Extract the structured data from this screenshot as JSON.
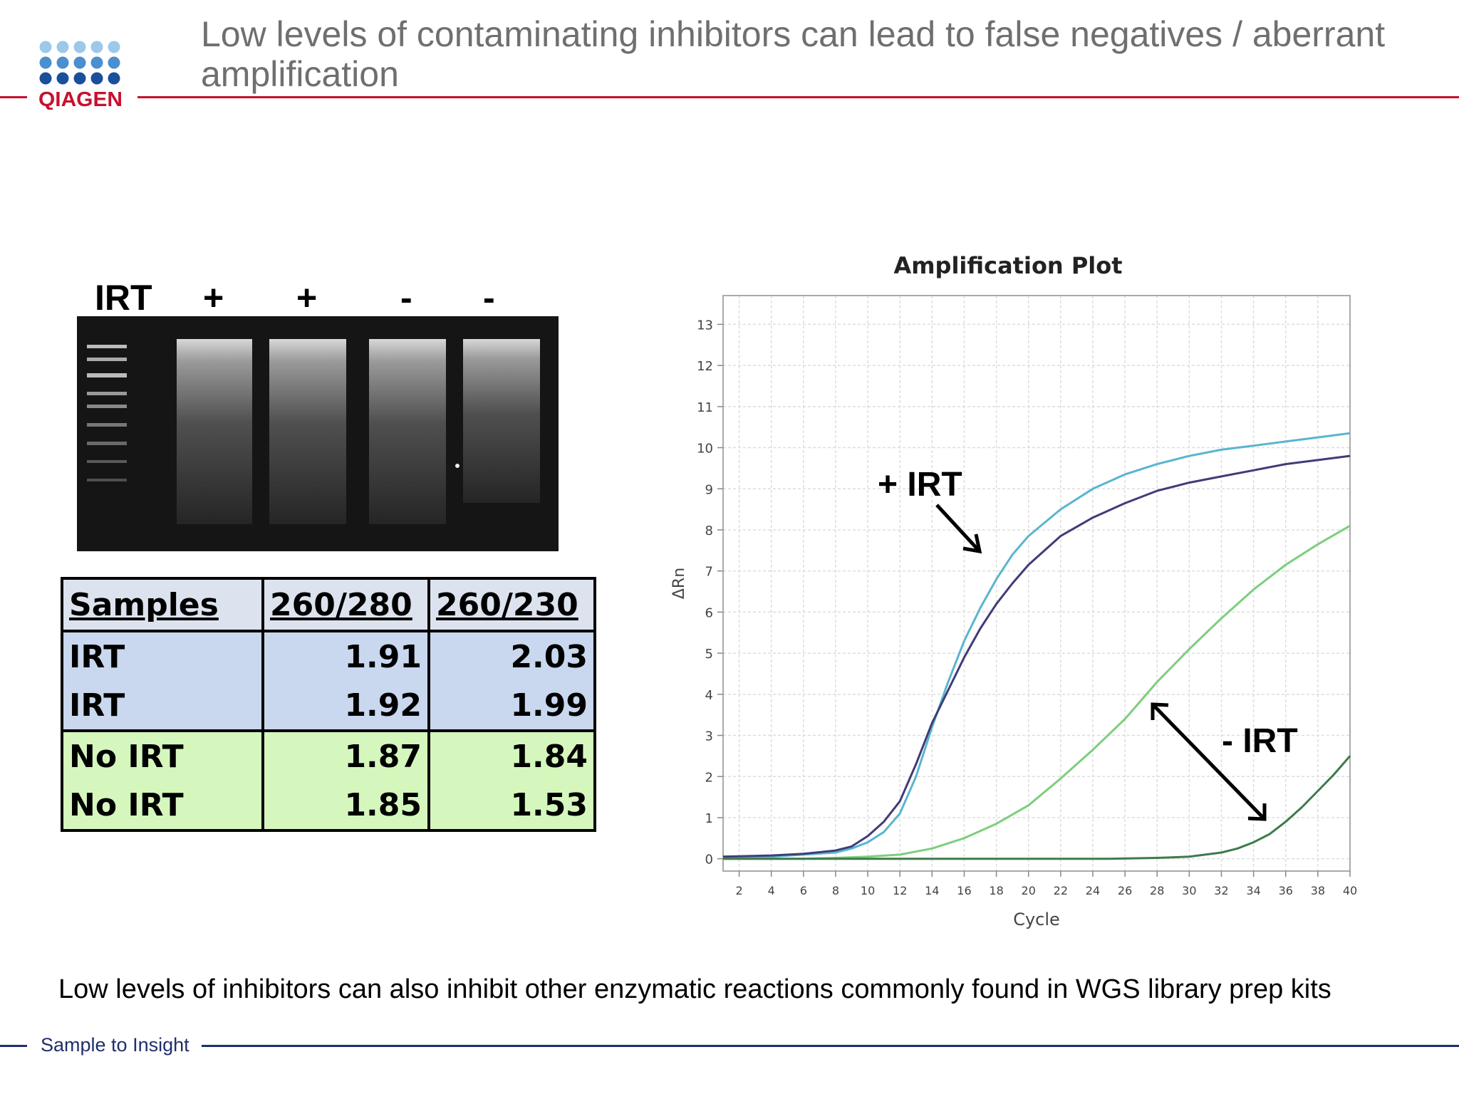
{
  "header": {
    "logo_text": "QIAGEN",
    "title": "Low levels of contaminating inhibitors can lead to false negatives / aberrant amplification"
  },
  "gel": {
    "lane_labels": [
      "IRT",
      "+",
      "+",
      "-",
      "-"
    ]
  },
  "table": {
    "headers": [
      "Samples",
      "260/280",
      "260/230"
    ],
    "rows": [
      {
        "sample": "IRT",
        "r280": "1.91",
        "r230": "2.03"
      },
      {
        "sample": "IRT",
        "r280": "1.92",
        "r230": "1.99"
      },
      {
        "sample": "No IRT",
        "r280": "1.87",
        "r230": "1.84"
      },
      {
        "sample": "No IRT",
        "r280": "1.85",
        "r230": "1.53"
      }
    ],
    "colors": {
      "irt": "#c9d8ee",
      "no_irt": "#d5f7bd",
      "header": "#dde3ee"
    }
  },
  "chart_data": {
    "type": "line",
    "title": "Amplification Plot",
    "xlabel": "Cycle",
    "ylabel": "ΔRn",
    "xlim": [
      1,
      40
    ],
    "ylim": [
      -0.3,
      13.7
    ],
    "xticks": [
      2,
      4,
      6,
      8,
      10,
      12,
      14,
      16,
      18,
      20,
      22,
      24,
      26,
      28,
      30,
      32,
      34,
      36,
      38,
      40
    ],
    "yticks": [
      0,
      1,
      2,
      3,
      4,
      5,
      6,
      7,
      8,
      9,
      10,
      11,
      12,
      13
    ],
    "grid": true,
    "series": [
      {
        "color": "#5ab5cf",
        "x": [
          1,
          4,
          6,
          8,
          9,
          10,
          11,
          12,
          13,
          14,
          15,
          16,
          17,
          18,
          19,
          20,
          22,
          24,
          26,
          28,
          30,
          32,
          34,
          36,
          38,
          40
        ],
        "y": [
          0.05,
          0.05,
          0.1,
          0.15,
          0.25,
          0.4,
          0.65,
          1.1,
          2.0,
          3.2,
          4.3,
          5.3,
          6.1,
          6.8,
          7.4,
          7.85,
          8.5,
          9.0,
          9.35,
          9.6,
          9.8,
          9.95,
          10.05,
          10.15,
          10.25,
          10.35
        ]
      },
      {
        "color": "#3f3c78",
        "x": [
          1,
          4,
          6,
          8,
          9,
          10,
          11,
          12,
          13,
          14,
          15,
          16,
          17,
          18,
          19,
          20,
          22,
          24,
          26,
          28,
          30,
          32,
          34,
          36,
          38,
          40
        ],
        "y": [
          0.05,
          0.08,
          0.12,
          0.2,
          0.3,
          0.55,
          0.9,
          1.4,
          2.3,
          3.3,
          4.1,
          4.9,
          5.6,
          6.2,
          6.7,
          7.15,
          7.85,
          8.3,
          8.65,
          8.95,
          9.15,
          9.3,
          9.45,
          9.6,
          9.7,
          9.8
        ]
      },
      {
        "color": "#7dce7d",
        "x": [
          1,
          6,
          8,
          10,
          12,
          14,
          16,
          18,
          20,
          22,
          24,
          26,
          28,
          30,
          32,
          34,
          36,
          38,
          40
        ],
        "y": [
          0.0,
          0.0,
          0.02,
          0.05,
          0.1,
          0.25,
          0.5,
          0.85,
          1.3,
          1.95,
          2.65,
          3.4,
          4.3,
          5.1,
          5.85,
          6.55,
          7.15,
          7.65,
          8.1
        ]
      },
      {
        "color": "#3d7a4d",
        "x": [
          1,
          10,
          20,
          25,
          28,
          30,
          32,
          33,
          34,
          35,
          36,
          37,
          38,
          39,
          40
        ],
        "y": [
          0.0,
          0.0,
          0.0,
          0.0,
          0.02,
          0.05,
          0.15,
          0.25,
          0.4,
          0.6,
          0.9,
          1.25,
          1.65,
          2.05,
          2.5
        ]
      }
    ],
    "annotations": [
      {
        "text": "+ IRT"
      },
      {
        "text": "- IRT"
      }
    ]
  },
  "footnote": "Low levels of inhibitors can also inhibit other enzymatic reactions commonly found in WGS library prep kits",
  "footer": {
    "tagline": "Sample to Insight"
  }
}
